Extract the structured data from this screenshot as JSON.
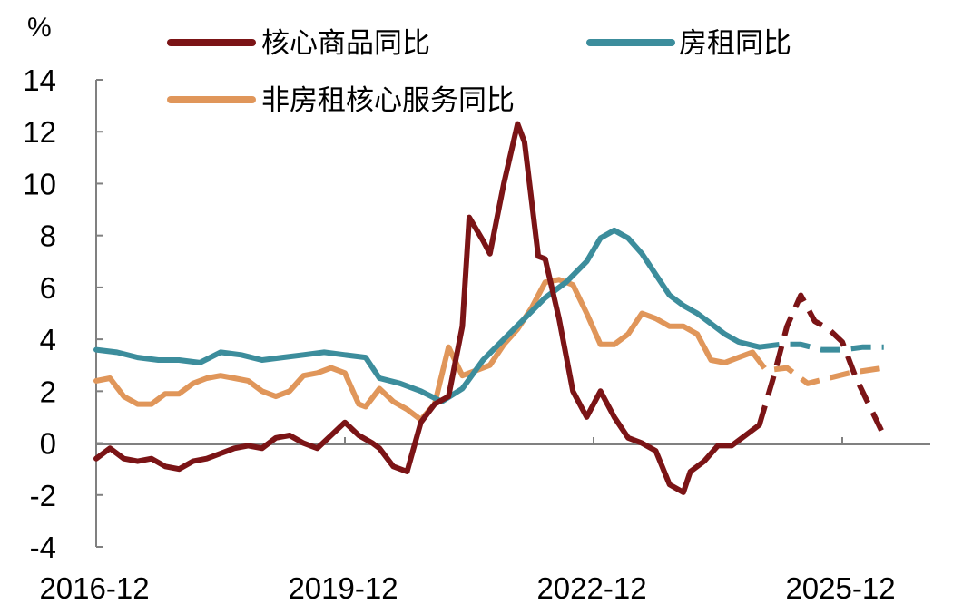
{
  "chart_data": {
    "type": "line",
    "unit_label": "%",
    "ylim": [
      -4,
      14
    ],
    "y_ticks": [
      -4,
      -2,
      0,
      2,
      4,
      6,
      8,
      10,
      12,
      14
    ],
    "x_range": [
      "2016-12",
      "2026-12"
    ],
    "x_tick_dates": [
      "2016-12",
      "2019-12",
      "2022-12",
      "2025-12"
    ],
    "x_tick_labels": [
      "2016-12",
      "2019-12",
      "2022-12",
      "2025-12"
    ],
    "grid": false,
    "legend_position": "top",
    "series": [
      {
        "name": "核心商品同比",
        "color": "#7b1416",
        "actual": [
          [
            "2016-12",
            -0.6
          ],
          [
            "2017-02",
            -0.2
          ],
          [
            "2017-04",
            -0.6
          ],
          [
            "2017-06",
            -0.7
          ],
          [
            "2017-08",
            -0.6
          ],
          [
            "2017-10",
            -0.9
          ],
          [
            "2017-12",
            -1.0
          ],
          [
            "2018-02",
            -0.7
          ],
          [
            "2018-04",
            -0.6
          ],
          [
            "2018-06",
            -0.4
          ],
          [
            "2018-08",
            -0.2
          ],
          [
            "2018-10",
            -0.1
          ],
          [
            "2018-12",
            -0.2
          ],
          [
            "2019-02",
            0.2
          ],
          [
            "2019-04",
            0.3
          ],
          [
            "2019-06",
            0.0
          ],
          [
            "2019-08",
            -0.2
          ],
          [
            "2019-10",
            0.3
          ],
          [
            "2019-12",
            0.8
          ],
          [
            "2020-02",
            0.3
          ],
          [
            "2020-04",
            0.0
          ],
          [
            "2020-05",
            -0.2
          ],
          [
            "2020-07",
            -0.9
          ],
          [
            "2020-09",
            -1.1
          ],
          [
            "2020-11",
            0.8
          ],
          [
            "2021-01",
            1.5
          ],
          [
            "2021-03",
            1.8
          ],
          [
            "2021-05",
            4.5
          ],
          [
            "2021-06",
            8.7
          ],
          [
            "2021-08",
            7.8
          ],
          [
            "2021-09",
            7.3
          ],
          [
            "2021-11",
            10.0
          ],
          [
            "2022-01",
            12.3
          ],
          [
            "2022-02",
            11.6
          ],
          [
            "2022-04",
            7.2
          ],
          [
            "2022-05",
            7.1
          ],
          [
            "2022-07",
            4.8
          ],
          [
            "2022-09",
            2.0
          ],
          [
            "2022-11",
            1.0
          ],
          [
            "2023-01",
            2.0
          ],
          [
            "2023-03",
            1.0
          ],
          [
            "2023-05",
            0.2
          ],
          [
            "2023-07",
            0.0
          ],
          [
            "2023-09",
            -0.3
          ],
          [
            "2023-11",
            -1.6
          ],
          [
            "2024-01",
            -1.9
          ],
          [
            "2024-02",
            -1.1
          ],
          [
            "2024-04",
            -0.7
          ],
          [
            "2024-06",
            -0.1
          ],
          [
            "2024-08",
            -0.1
          ],
          [
            "2024-10",
            0.3
          ],
          [
            "2024-12",
            0.7
          ]
        ],
        "forecast": [
          [
            "2024-12",
            0.7
          ],
          [
            "2025-02",
            2.5
          ],
          [
            "2025-04",
            4.5
          ],
          [
            "2025-06",
            5.7
          ],
          [
            "2025-08",
            4.7
          ],
          [
            "2025-10",
            4.4
          ],
          [
            "2025-12",
            3.9
          ],
          [
            "2026-02",
            2.5
          ],
          [
            "2026-06",
            0.3
          ]
        ]
      },
      {
        "name": "房租同比",
        "color": "#3c8d9c",
        "actual": [
          [
            "2016-12",
            3.6
          ],
          [
            "2017-03",
            3.5
          ],
          [
            "2017-06",
            3.3
          ],
          [
            "2017-09",
            3.2
          ],
          [
            "2017-12",
            3.2
          ],
          [
            "2018-03",
            3.1
          ],
          [
            "2018-06",
            3.5
          ],
          [
            "2018-09",
            3.4
          ],
          [
            "2018-12",
            3.2
          ],
          [
            "2019-03",
            3.3
          ],
          [
            "2019-06",
            3.4
          ],
          [
            "2019-09",
            3.5
          ],
          [
            "2019-12",
            3.4
          ],
          [
            "2020-03",
            3.3
          ],
          [
            "2020-05",
            2.5
          ],
          [
            "2020-08",
            2.3
          ],
          [
            "2020-11",
            2.0
          ],
          [
            "2021-02",
            1.6
          ],
          [
            "2021-05",
            2.1
          ],
          [
            "2021-08",
            3.2
          ],
          [
            "2021-11",
            4.0
          ],
          [
            "2022-02",
            4.8
          ],
          [
            "2022-05",
            5.6
          ],
          [
            "2022-08",
            6.2
          ],
          [
            "2022-11",
            7.0
          ],
          [
            "2023-01",
            7.9
          ],
          [
            "2023-03",
            8.2
          ],
          [
            "2023-05",
            7.9
          ],
          [
            "2023-07",
            7.3
          ],
          [
            "2023-09",
            6.5
          ],
          [
            "2023-11",
            5.7
          ],
          [
            "2024-01",
            5.3
          ],
          [
            "2024-03",
            5.0
          ],
          [
            "2024-05",
            4.6
          ],
          [
            "2024-07",
            4.2
          ],
          [
            "2024-09",
            3.9
          ],
          [
            "2024-12",
            3.7
          ]
        ],
        "forecast": [
          [
            "2024-12",
            3.7
          ],
          [
            "2025-03",
            3.8
          ],
          [
            "2025-06",
            3.8
          ],
          [
            "2025-09",
            3.6
          ],
          [
            "2025-12",
            3.6
          ],
          [
            "2026-03",
            3.7
          ],
          [
            "2026-06",
            3.7
          ]
        ]
      },
      {
        "name": "非房租核心服务同比",
        "color": "#e0965a",
        "actual": [
          [
            "2016-12",
            2.4
          ],
          [
            "2017-02",
            2.5
          ],
          [
            "2017-04",
            1.8
          ],
          [
            "2017-06",
            1.5
          ],
          [
            "2017-08",
            1.5
          ],
          [
            "2017-10",
            1.9
          ],
          [
            "2017-12",
            1.9
          ],
          [
            "2018-02",
            2.3
          ],
          [
            "2018-04",
            2.5
          ],
          [
            "2018-06",
            2.6
          ],
          [
            "2018-08",
            2.5
          ],
          [
            "2018-10",
            2.4
          ],
          [
            "2018-12",
            2.0
          ],
          [
            "2019-02",
            1.8
          ],
          [
            "2019-04",
            2.0
          ],
          [
            "2019-06",
            2.6
          ],
          [
            "2019-08",
            2.7
          ],
          [
            "2019-10",
            2.9
          ],
          [
            "2019-12",
            2.7
          ],
          [
            "2020-02",
            1.5
          ],
          [
            "2020-03",
            1.4
          ],
          [
            "2020-05",
            2.1
          ],
          [
            "2020-07",
            1.6
          ],
          [
            "2020-09",
            1.3
          ],
          [
            "2020-11",
            0.9
          ],
          [
            "2021-01",
            1.5
          ],
          [
            "2021-03",
            3.7
          ],
          [
            "2021-05",
            2.6
          ],
          [
            "2021-07",
            2.8
          ],
          [
            "2021-09",
            3.0
          ],
          [
            "2021-11",
            3.8
          ],
          [
            "2022-01",
            4.4
          ],
          [
            "2022-03",
            5.2
          ],
          [
            "2022-05",
            6.2
          ],
          [
            "2022-07",
            6.3
          ],
          [
            "2022-09",
            6.1
          ],
          [
            "2022-11",
            5.0
          ],
          [
            "2023-01",
            3.8
          ],
          [
            "2023-03",
            3.8
          ],
          [
            "2023-05",
            4.2
          ],
          [
            "2023-07",
            5.0
          ],
          [
            "2023-09",
            4.8
          ],
          [
            "2023-11",
            4.5
          ],
          [
            "2024-01",
            4.5
          ],
          [
            "2024-03",
            4.2
          ],
          [
            "2024-05",
            3.2
          ],
          [
            "2024-07",
            3.1
          ],
          [
            "2024-09",
            3.3
          ],
          [
            "2024-11",
            3.5
          ]
        ],
        "forecast": [
          [
            "2024-11",
            3.5
          ],
          [
            "2025-01",
            2.8
          ],
          [
            "2025-04",
            2.9
          ],
          [
            "2025-07",
            2.3
          ],
          [
            "2025-10",
            2.5
          ],
          [
            "2026-01",
            2.7
          ],
          [
            "2026-06",
            2.9
          ]
        ]
      }
    ]
  }
}
